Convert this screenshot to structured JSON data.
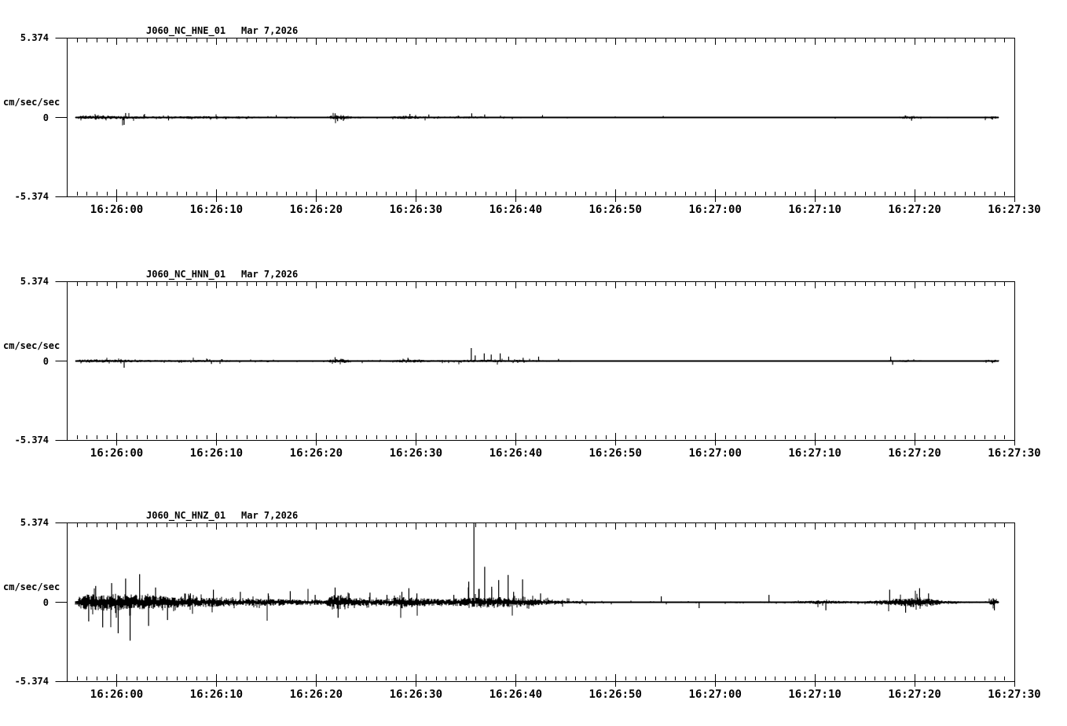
{
  "page": {
    "background_color": "#ffffff",
    "ink_color": "#000000",
    "description": "Three-channel strong-motion seismogram display, station J060 network NC"
  },
  "chart_data": [
    {
      "type": "line",
      "title": "J060_NC_HNE_01",
      "date_label": "Mar 7,2026",
      "ylabel": "cm/sec/sec",
      "y_max_label": "5.374",
      "y_zero_label": "0",
      "y_min_label": "-5.374",
      "ylim": [
        -5.374,
        5.374
      ],
      "x_start": "16:25:55",
      "x_end": "16:27:30",
      "duration_s": 95,
      "major_tick_interval_s": 10,
      "minor_tick_interval_s": 1,
      "x_tick_labels": [
        "16:26:00",
        "16:26:10",
        "16:26:20",
        "16:26:30",
        "16:26:40",
        "16:26:50",
        "16:27:00",
        "16:27:10",
        "16:27:20",
        "16:27:30"
      ],
      "trace": {
        "seed": 11,
        "start_s": 0.9,
        "end_s": 93.4,
        "envelope": [
          [
            0.9,
            0.03
          ],
          [
            1.2,
            0.11
          ],
          [
            3,
            0.12
          ],
          [
            5,
            0.1
          ],
          [
            7,
            0.09
          ],
          [
            10,
            0.07
          ],
          [
            12,
            0.08
          ],
          [
            14,
            0.08
          ],
          [
            17,
            0.06
          ],
          [
            20,
            0.05
          ],
          [
            23,
            0.04
          ],
          [
            26,
            0.04
          ],
          [
            26.6,
            0.14
          ],
          [
            27.6,
            0.16
          ],
          [
            28.6,
            0.07
          ],
          [
            30,
            0.05
          ],
          [
            32,
            0.04
          ],
          [
            33.8,
            0.11
          ],
          [
            35,
            0.09
          ],
          [
            36.5,
            0.05
          ],
          [
            38,
            0.05
          ],
          [
            40,
            0.07
          ],
          [
            42,
            0.06
          ],
          [
            44,
            0.04
          ],
          [
            46,
            0.03
          ],
          [
            48,
            0.04
          ],
          [
            49.5,
            0.02
          ],
          [
            52,
            0.025
          ],
          [
            55,
            0.018
          ],
          [
            60,
            0.018
          ],
          [
            64,
            0.022
          ],
          [
            68,
            0.018
          ],
          [
            74,
            0.018
          ],
          [
            80,
            0.02
          ],
          [
            83,
            0.025
          ],
          [
            83.8,
            0.09
          ],
          [
            85,
            0.1
          ],
          [
            86.2,
            0.04
          ],
          [
            88,
            0.02
          ],
          [
            91.5,
            0.02
          ],
          [
            92.5,
            0.1
          ],
          [
            93.1,
            0.08
          ],
          [
            93.4,
            0.03
          ]
        ],
        "spikes": [
          [
            5.75,
            -0.5
          ],
          [
            5.9,
            0.3
          ],
          [
            10.2,
            -0.2
          ],
          [
            21.0,
            0.16
          ],
          [
            26.9,
            0.28
          ],
          [
            27.15,
            -0.25
          ],
          [
            34.4,
            0.24
          ],
          [
            36.3,
            0.2
          ],
          [
            40.6,
            0.28
          ],
          [
            41.9,
            0.2
          ],
          [
            47.7,
            0.16
          ],
          [
            59.8,
            0.1
          ],
          [
            84.7,
            -0.22
          ],
          [
            92.8,
            -0.15
          ]
        ]
      }
    },
    {
      "type": "line",
      "title": "J060_NC_HNN_01",
      "date_label": "Mar 7,2026",
      "ylabel": "cm/sec/sec",
      "y_max_label": "5.374",
      "y_zero_label": "0",
      "y_min_label": "-5.374",
      "ylim": [
        -5.374,
        5.374
      ],
      "x_start": "16:25:55",
      "x_end": "16:27:30",
      "duration_s": 95,
      "major_tick_interval_s": 10,
      "minor_tick_interval_s": 1,
      "x_tick_labels": [
        "16:26:00",
        "16:26:10",
        "16:26:20",
        "16:26:30",
        "16:26:40",
        "16:26:50",
        "16:27:00",
        "16:27:10",
        "16:27:20",
        "16:27:30"
      ],
      "trace": {
        "seed": 22,
        "start_s": 0.9,
        "end_s": 93.4,
        "envelope": [
          [
            0.9,
            0.03
          ],
          [
            1.2,
            0.09
          ],
          [
            3,
            0.1
          ],
          [
            5,
            0.09
          ],
          [
            7,
            0.08
          ],
          [
            10,
            0.06
          ],
          [
            12,
            0.07
          ],
          [
            14,
            0.08
          ],
          [
            16,
            0.06
          ],
          [
            18,
            0.05
          ],
          [
            20,
            0.05
          ],
          [
            23,
            0.04
          ],
          [
            26,
            0.04
          ],
          [
            26.6,
            0.12
          ],
          [
            27.6,
            0.14
          ],
          [
            28.6,
            0.06
          ],
          [
            30,
            0.05
          ],
          [
            32,
            0.05
          ],
          [
            33.5,
            0.09
          ],
          [
            35,
            0.1
          ],
          [
            36.5,
            0.06
          ],
          [
            38,
            0.06
          ],
          [
            39.5,
            0.07
          ],
          [
            41,
            0.08
          ],
          [
            43,
            0.08
          ],
          [
            45,
            0.07
          ],
          [
            47,
            0.06
          ],
          [
            48.5,
            0.05
          ],
          [
            50,
            0.03
          ],
          [
            53,
            0.02
          ],
          [
            56,
            0.018
          ],
          [
            60,
            0.018
          ],
          [
            65,
            0.018
          ],
          [
            70,
            0.018
          ],
          [
            75,
            0.02
          ],
          [
            80,
            0.02
          ],
          [
            82.5,
            0.05
          ],
          [
            84,
            0.07
          ],
          [
            85.5,
            0.06
          ],
          [
            87,
            0.03
          ],
          [
            89,
            0.02
          ],
          [
            91.5,
            0.02
          ],
          [
            92.5,
            0.1
          ],
          [
            93.1,
            0.08
          ],
          [
            93.4,
            0.03
          ]
        ],
        "spikes": [
          [
            5.75,
            -0.45
          ],
          [
            14.5,
            -0.2
          ],
          [
            26.9,
            0.26
          ],
          [
            34.2,
            0.22
          ],
          [
            40.55,
            0.88
          ],
          [
            40.95,
            0.38
          ],
          [
            41.85,
            0.52
          ],
          [
            42.55,
            0.44
          ],
          [
            43.45,
            0.52
          ],
          [
            44.3,
            0.3
          ],
          [
            45.75,
            0.22
          ],
          [
            47.3,
            0.3
          ],
          [
            49.3,
            0.15
          ],
          [
            82.6,
            0.3
          ],
          [
            82.8,
            -0.25
          ],
          [
            92.8,
            -0.15
          ]
        ]
      }
    },
    {
      "type": "line",
      "title": "J060_NC_HNZ_01",
      "date_label": "Mar 7,2026",
      "ylabel": "cm/sec/sec",
      "y_max_label": "5.374",
      "y_zero_label": "0",
      "y_min_label": "-5.374",
      "ylim": [
        -5.374,
        5.374
      ],
      "x_start": "16:25:55",
      "x_end": "16:27:30",
      "duration_s": 95,
      "major_tick_interval_s": 10,
      "minor_tick_interval_s": 1,
      "x_tick_labels": [
        "16:26:00",
        "16:26:10",
        "16:26:20",
        "16:26:30",
        "16:26:40",
        "16:26:50",
        "16:27:00",
        "16:27:10",
        "16:27:20",
        "16:27:30"
      ],
      "trace": {
        "seed": 33,
        "start_s": 0.9,
        "end_s": 93.4,
        "envelope": [
          [
            0.9,
            0.1
          ],
          [
            1.3,
            0.4
          ],
          [
            2.5,
            0.5
          ],
          [
            4,
            0.55
          ],
          [
            5.5,
            0.5
          ],
          [
            7,
            0.48
          ],
          [
            9,
            0.42
          ],
          [
            11,
            0.35
          ],
          [
            12.5,
            0.28
          ],
          [
            14,
            0.3
          ],
          [
            16,
            0.26
          ],
          [
            18,
            0.22
          ],
          [
            20,
            0.24
          ],
          [
            22,
            0.2
          ],
          [
            24,
            0.17
          ],
          [
            26,
            0.16
          ],
          [
            26.6,
            0.45
          ],
          [
            27.6,
            0.5
          ],
          [
            28.6,
            0.28
          ],
          [
            30,
            0.22
          ],
          [
            31.5,
            0.18
          ],
          [
            33,
            0.3
          ],
          [
            34.3,
            0.36
          ],
          [
            35.5,
            0.28
          ],
          [
            37,
            0.2
          ],
          [
            38.5,
            0.22
          ],
          [
            40,
            0.3
          ],
          [
            41.5,
            0.35
          ],
          [
            43,
            0.32
          ],
          [
            44.5,
            0.3
          ],
          [
            46,
            0.24
          ],
          [
            47.5,
            0.18
          ],
          [
            49,
            0.12
          ],
          [
            51,
            0.08
          ],
          [
            53,
            0.05
          ],
          [
            56,
            0.04
          ],
          [
            59,
            0.05
          ],
          [
            62,
            0.04
          ],
          [
            65,
            0.05
          ],
          [
            68,
            0.04
          ],
          [
            70,
            0.06
          ],
          [
            72,
            0.05
          ],
          [
            74,
            0.08
          ],
          [
            75.5,
            0.12
          ],
          [
            77,
            0.1
          ],
          [
            78.5,
            0.08
          ],
          [
            80,
            0.07
          ],
          [
            81.5,
            0.14
          ],
          [
            83,
            0.22
          ],
          [
            84.5,
            0.3
          ],
          [
            85.8,
            0.32
          ],
          [
            87,
            0.2
          ],
          [
            88,
            0.12
          ],
          [
            89.5,
            0.07
          ],
          [
            91,
            0.05
          ],
          [
            92.3,
            0.06
          ],
          [
            92.9,
            0.28
          ],
          [
            93.3,
            0.15
          ],
          [
            93.4,
            0.05
          ]
        ],
        "spikes": [
          [
            2.2,
            -1.3
          ],
          [
            2.9,
            1.1
          ],
          [
            3.6,
            -1.7
          ],
          [
            4.5,
            1.3
          ],
          [
            5.15,
            -2.1
          ],
          [
            5.9,
            1.6
          ],
          [
            6.35,
            -2.6
          ],
          [
            7.3,
            1.9
          ],
          [
            8.2,
            -1.6
          ],
          [
            8.9,
            1.0
          ],
          [
            10.1,
            -1.2
          ],
          [
            12.4,
            0.6
          ],
          [
            14.7,
            0.85
          ],
          [
            17.4,
            0.7
          ],
          [
            20.2,
            0.6
          ],
          [
            22.4,
            0.75
          ],
          [
            24.9,
            0.5
          ],
          [
            26.9,
            1.0
          ],
          [
            27.2,
            -1.05
          ],
          [
            28.3,
            0.6
          ],
          [
            30.4,
            0.65
          ],
          [
            32.1,
            0.5
          ],
          [
            33.6,
            0.7
          ],
          [
            34.3,
            0.95
          ],
          [
            35.1,
            0.6
          ],
          [
            38.8,
            0.5
          ],
          [
            40.3,
            1.4
          ],
          [
            40.82,
            5.35
          ],
          [
            41.3,
            0.9
          ],
          [
            41.9,
            2.4
          ],
          [
            42.6,
            1.05
          ],
          [
            43.3,
            1.5
          ],
          [
            44.25,
            1.85
          ],
          [
            44.8,
            0.7
          ],
          [
            45.7,
            1.55
          ],
          [
            47.5,
            0.6
          ],
          [
            59.6,
            0.4
          ],
          [
            63.4,
            -0.4
          ],
          [
            70.4,
            0.5
          ],
          [
            76.1,
            -0.55
          ],
          [
            82.5,
            0.85
          ],
          [
            84.1,
            -0.7
          ],
          [
            85.5,
            0.95
          ],
          [
            86.4,
            0.6
          ],
          [
            93.0,
            -0.55
          ]
        ]
      }
    }
  ]
}
